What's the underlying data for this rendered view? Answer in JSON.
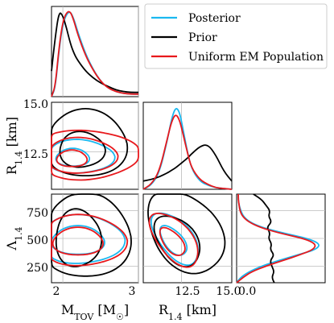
{
  "chart_data": {
    "type": "corner",
    "series": [
      {
        "name": "Posterior",
        "color": "#1ab8f0"
      },
      {
        "name": "Prior",
        "color": "#000000"
      },
      {
        "name": "Uniform EM Population",
        "color": "#e8181c"
      }
    ],
    "legend": {
      "position": "top-right"
    },
    "labels": {
      "mtov": "M",
      "mtov_sub": "TOV",
      "mtov_unit_open": " [M",
      "mtov_unit_sub": "☉",
      "mtov_unit_close": "]",
      "r14": "R",
      "r14_sub": "1.4",
      "r14_unit": " [km]",
      "lam": "Λ",
      "lam_sub": "1.4"
    },
    "ticks": {
      "mtov": [
        "2",
        "3"
      ],
      "r14_x": [
        "12.5",
        "15.0"
      ],
      "r14_y": [
        "15.0",
        "12.5"
      ],
      "lam": [
        "750",
        "500",
        "250"
      ],
      "lam_x": [
        "0.0"
      ]
    },
    "axes": {
      "mtov_range": [
        1.85,
        3.0
      ],
      "r14_range": [
        10.6,
        15.0
      ],
      "lam_range": [
        100,
        900
      ]
    },
    "marginals": {
      "mtov": {
        "x": [
          1.85,
          1.9,
          1.95,
          2.0,
          2.05,
          2.1,
          2.15,
          2.2,
          2.3,
          2.4,
          2.5,
          2.6,
          2.7,
          2.8,
          2.9,
          3.0
        ],
        "Posterior": [
          0.0,
          0.1,
          0.55,
          0.85,
          0.97,
          1.0,
          0.9,
          0.75,
          0.5,
          0.32,
          0.18,
          0.1,
          0.06,
          0.04,
          0.03,
          0.03
        ],
        "Prior": [
          0.3,
          0.7,
          1.0,
          0.95,
          0.8,
          0.62,
          0.5,
          0.42,
          0.3,
          0.22,
          0.16,
          0.12,
          0.08,
          0.06,
          0.05,
          0.05
        ],
        "Uniform EM Population": [
          0.0,
          0.12,
          0.58,
          0.88,
          0.99,
          1.0,
          0.88,
          0.72,
          0.48,
          0.31,
          0.18,
          0.1,
          0.06,
          0.04,
          0.03,
          0.03
        ]
      },
      "r14": {
        "x": [
          10.6,
          11.0,
          11.4,
          11.8,
          12.0,
          12.2,
          12.4,
          12.6,
          12.8,
          13.0,
          13.4,
          13.8,
          14.2,
          14.6,
          15.0
        ],
        "Posterior": [
          0.0,
          0.05,
          0.2,
          0.6,
          0.85,
          1.0,
          0.95,
          0.7,
          0.45,
          0.25,
          0.1,
          0.05,
          0.02,
          0.01,
          0.0
        ],
        "Prior": [
          0.1,
          0.12,
          0.15,
          0.2,
          0.23,
          0.26,
          0.3,
          0.34,
          0.38,
          0.43,
          0.52,
          0.55,
          0.42,
          0.22,
          0.1
        ],
        "Uniform EM Population": [
          0.0,
          0.06,
          0.22,
          0.62,
          0.82,
          0.92,
          0.85,
          0.65,
          0.44,
          0.26,
          0.12,
          0.06,
          0.02,
          0.01,
          0.0
        ]
      },
      "lam": {
        "y": [
          100,
          150,
          200,
          250,
          300,
          350,
          400,
          450,
          500,
          550,
          600,
          650,
          700,
          750,
          800,
          850,
          900
        ],
        "Posterior": [
          0.0,
          0.05,
          0.15,
          0.3,
          0.5,
          0.72,
          0.95,
          1.0,
          0.85,
          0.55,
          0.3,
          0.15,
          0.08,
          0.05,
          0.03,
          0.02,
          0.02
        ],
        "Prior": [
          0.45,
          0.42,
          0.45,
          0.42,
          0.4,
          0.45,
          0.4,
          0.42,
          0.38,
          0.4,
          0.36,
          0.42,
          0.38,
          0.4,
          0.35,
          0.3,
          0.2
        ],
        "Uniform EM Population": [
          0.0,
          0.08,
          0.18,
          0.35,
          0.55,
          0.75,
          0.92,
          0.95,
          0.8,
          0.5,
          0.28,
          0.14,
          0.07,
          0.04,
          0.03,
          0.02,
          0.02
        ]
      }
    },
    "contours": {
      "mtov_r14": {
        "Posterior": [
          {
            "cx": 2.13,
            "cy": 12.2,
            "rx": 0.22,
            "ry": 0.45
          },
          {
            "cx": 2.22,
            "cy": 12.25,
            "rx": 0.45,
            "ry": 0.85
          }
        ],
        "Prior": [
          {
            "cx": 2.3,
            "cy": 12.9,
            "rx": 0.55,
            "ry": 1.7
          },
          {
            "cx": 2.25,
            "cy": 12.6,
            "rx": 0.3,
            "ry": 0.9
          }
        ],
        "Uniform EM Population": [
          {
            "cx": 2.12,
            "cy": 12.15,
            "rx": 0.2,
            "ry": 0.42
          },
          {
            "cx": 2.24,
            "cy": 12.3,
            "rx": 0.47,
            "ry": 0.9
          },
          {
            "cx": 2.3,
            "cy": 12.35,
            "rx": 0.7,
            "ry": 1.25
          }
        ]
      },
      "mtov_lam": {
        "Posterior": [
          {
            "cx": 2.2,
            "cy": 480,
            "rx": 0.35,
            "ry": 130
          },
          {
            "cx": 2.25,
            "cy": 490,
            "rx": 0.55,
            "ry": 220
          }
        ],
        "Prior": [
          {
            "cx": 2.3,
            "cy": 520,
            "rx": 0.6,
            "ry": 380
          },
          {
            "cx": 2.2,
            "cy": 500,
            "rx": 0.3,
            "ry": 260
          }
        ],
        "Uniform EM Population": [
          {
            "cx": 2.2,
            "cy": 470,
            "rx": 0.33,
            "ry": 125
          },
          {
            "cx": 2.26,
            "cy": 480,
            "rx": 0.57,
            "ry": 230
          }
        ]
      },
      "r14_lam": {
        "Posterior": [
          {
            "cx": 12.1,
            "cy": 480,
            "rx": 0.45,
            "ry": 160,
            "angle": -40
          },
          {
            "cx": 12.2,
            "cy": 500,
            "rx": 0.8,
            "ry": 280,
            "angle": -40
          }
        ],
        "Prior": [
          {
            "cx": 12.7,
            "cy": 560,
            "rx": 1.6,
            "ry": 420,
            "angle": -38
          },
          {
            "cx": 12.3,
            "cy": 480,
            "rx": 0.9,
            "ry": 260,
            "angle": -38
          }
        ],
        "Uniform EM Population": [
          {
            "cx": 12.05,
            "cy": 470,
            "rx": 0.42,
            "ry": 150,
            "angle": -40
          },
          {
            "cx": 12.15,
            "cy": 490,
            "rx": 0.82,
            "ry": 290,
            "angle": -40
          }
        ]
      }
    }
  }
}
